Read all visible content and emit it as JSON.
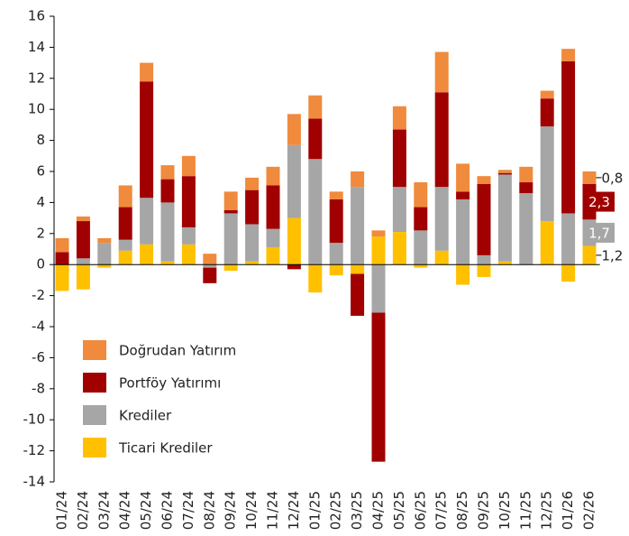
{
  "chart_data": {
    "type": "bar",
    "stacked": true,
    "categories": [
      "01/24",
      "02/24",
      "03/24",
      "04/24",
      "05/24",
      "06/24",
      "07/24",
      "08/24",
      "09/24",
      "10/24",
      "11/24",
      "12/24",
      "01/25",
      "02/25",
      "03/25",
      "04/25",
      "05/25",
      "06/25",
      "07/25",
      "08/25",
      "09/25",
      "10/25",
      "11/25",
      "12/25",
      "01/26",
      "02/26"
    ],
    "series": [
      {
        "name": "Ticari Krediler",
        "color": "#ffc000",
        "values": [
          -1.7,
          -1.6,
          -0.2,
          0.9,
          1.3,
          0.2,
          1.3,
          0,
          -0.4,
          0.2,
          1.1,
          3.0,
          -1.8,
          -0.7,
          -0.6,
          1.8,
          2.1,
          -0.2,
          0.9,
          -1.3,
          -0.8,
          0.2,
          0,
          2.8,
          -1.1,
          1.2
        ],
        "value_labels": [
          null,
          null,
          null,
          null,
          null,
          null,
          null,
          null,
          null,
          null,
          null,
          null,
          null,
          null,
          null,
          null,
          null,
          null,
          null,
          null,
          null,
          null,
          null,
          null,
          null,
          "1,2"
        ]
      },
      {
        "name": "Krediler",
        "color": "#a6a6a6",
        "values": [
          0,
          0.4,
          1.4,
          0.7,
          3.0,
          3.8,
          1.1,
          -0.2,
          3.3,
          2.4,
          1.2,
          4.7,
          6.8,
          1.4,
          5.0,
          -3.1,
          2.9,
          2.2,
          4.1,
          4.2,
          0.6,
          5.6,
          4.6,
          6.1,
          3.3,
          1.7
        ],
        "value_labels": [
          null,
          null,
          null,
          null,
          null,
          null,
          null,
          null,
          null,
          null,
          null,
          null,
          null,
          null,
          null,
          null,
          null,
          null,
          null,
          null,
          null,
          null,
          null,
          null,
          null,
          "1,7"
        ]
      },
      {
        "name": "Portföy Yatırımı",
        "color": "#a00000",
        "values": [
          0.8,
          2.4,
          0,
          2.1,
          7.5,
          1.5,
          3.3,
          -1.0,
          0.2,
          2.2,
          2.8,
          -0.3,
          2.6,
          2.8,
          -2.7,
          -9.6,
          3.7,
          1.5,
          6.1,
          0.5,
          4.6,
          0.1,
          0.7,
          1.8,
          9.8,
          2.3
        ],
        "value_labels": [
          null,
          null,
          null,
          null,
          null,
          null,
          null,
          null,
          null,
          null,
          null,
          null,
          null,
          null,
          null,
          null,
          null,
          null,
          null,
          null,
          null,
          null,
          null,
          null,
          null,
          "2,3"
        ]
      },
      {
        "name": "Doğrudan Yatırım",
        "color": "#f08a3c",
        "values": [
          0.9,
          0.3,
          0.3,
          1.4,
          1.2,
          0.9,
          1.3,
          0.7,
          1.2,
          0.8,
          1.2,
          2.0,
          1.5,
          0.5,
          1.0,
          0.4,
          1.5,
          1.6,
          2.6,
          1.8,
          0.5,
          0.2,
          1.0,
          0.5,
          0.8,
          0.8
        ],
        "value_labels": [
          null,
          null,
          null,
          null,
          null,
          null,
          null,
          null,
          null,
          null,
          null,
          null,
          null,
          null,
          null,
          null,
          null,
          null,
          null,
          null,
          null,
          null,
          null,
          null,
          null,
          "0,8"
        ]
      }
    ],
    "ylim": [
      -14,
      16
    ],
    "yticks": [
      -14,
      -12,
      -10,
      -8,
      -6,
      -4,
      -2,
      0,
      2,
      4,
      6,
      8,
      10,
      12,
      14,
      16
    ]
  }
}
